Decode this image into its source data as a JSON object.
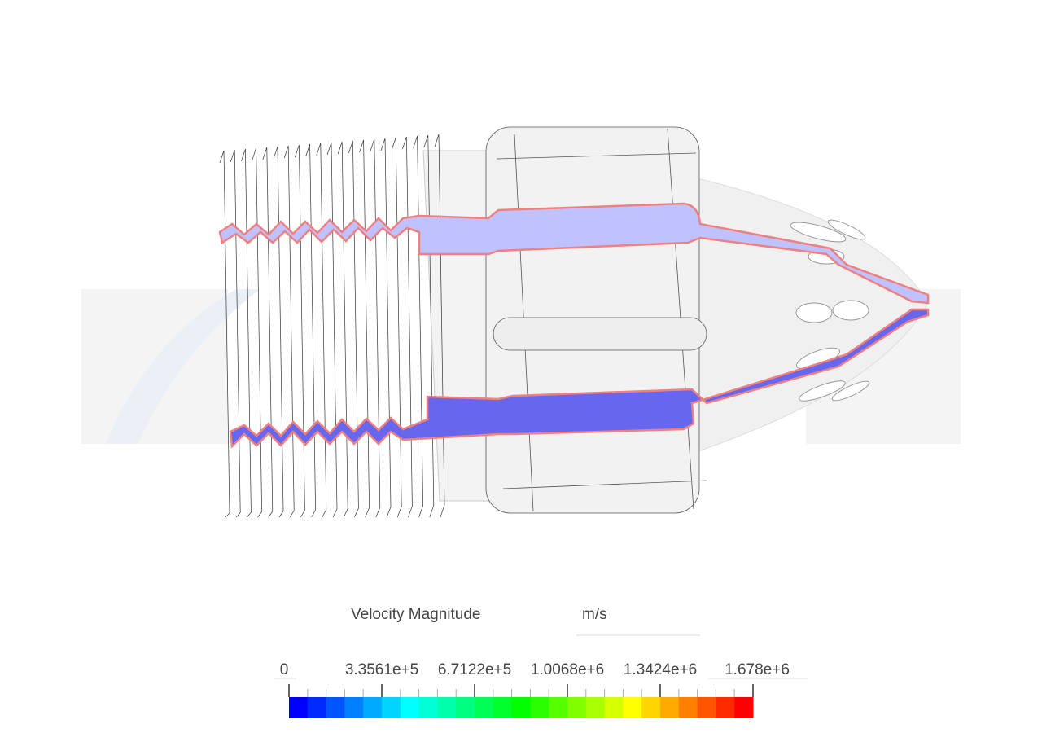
{
  "legend": {
    "title": "Velocity Magnitude",
    "unit": "m/s",
    "ticks": [
      "0",
      "3.3561e+5",
      "6.7122e+5",
      "1.0068e+6",
      "1.3424e+6",
      "1.678e+6"
    ]
  }
}
